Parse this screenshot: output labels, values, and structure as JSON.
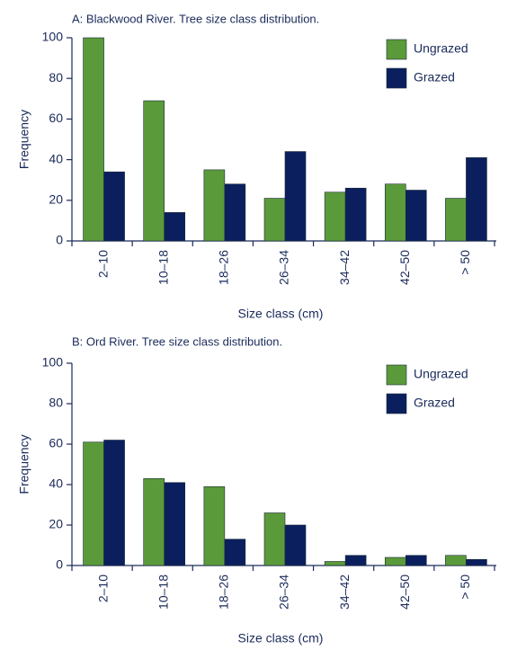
{
  "chart_data": [
    {
      "type": "bar",
      "title": "A: Blackwood River. Tree size class distribution.",
      "x_label": "Size class (cm)",
      "y_label": "Frequency",
      "categories": [
        "2–10",
        "10–18",
        "18–26",
        "26–34",
        "34–42",
        "42–50",
        "> 50"
      ],
      "series": [
        {
          "name": "Ungrazed",
          "color": "#5b9a3a",
          "values": [
            100,
            69,
            35,
            21,
            24,
            28,
            21
          ]
        },
        {
          "name": "Grazed",
          "color": "#0b1f5e",
          "values": [
            34,
            14,
            28,
            44,
            26,
            25,
            41
          ]
        }
      ],
      "ylim": [
        0,
        100
      ],
      "yticks": [
        0,
        20,
        40,
        60,
        80,
        100
      ],
      "legend": "upper right"
    },
    {
      "type": "bar",
      "title": "B: Ord River. Tree size class distribution.",
      "x_label": "Size class (cm)",
      "y_label": "Frequency",
      "categories": [
        "2–10",
        "10–18",
        "18–26",
        "26–34",
        "34–42",
        "42–50",
        "> 50"
      ],
      "series": [
        {
          "name": "Ungrazed",
          "color": "#5b9a3a",
          "values": [
            61,
            43,
            39,
            26,
            2,
            4,
            5
          ]
        },
        {
          "name": "Grazed",
          "color": "#0b1f5e",
          "values": [
            62,
            41,
            13,
            20,
            5,
            5,
            3
          ]
        }
      ],
      "ylim": [
        0,
        100
      ],
      "yticks": [
        0,
        20,
        40,
        60,
        80,
        100
      ],
      "legend": "upper right"
    }
  ]
}
